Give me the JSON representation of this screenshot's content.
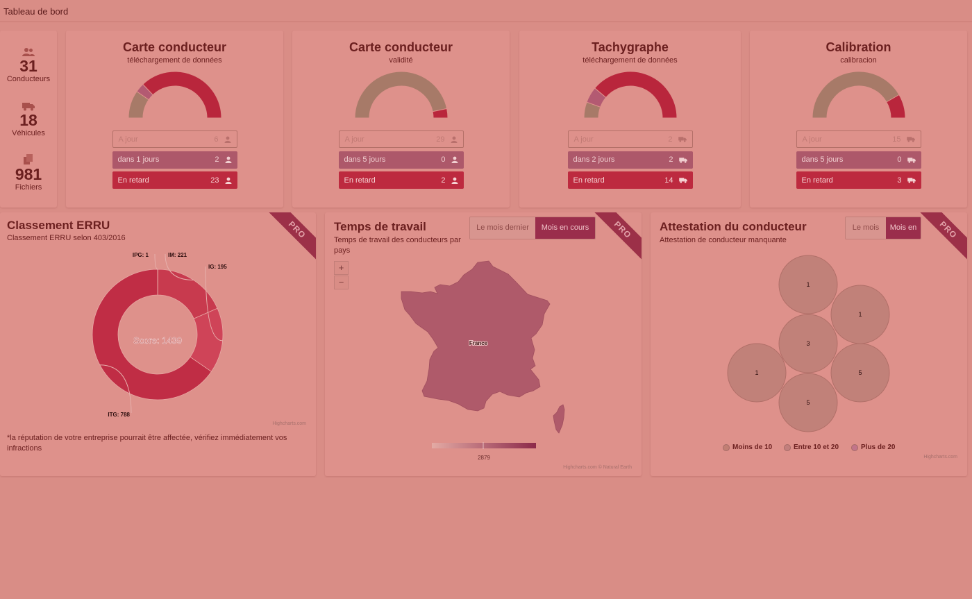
{
  "topbar": {
    "title": "Tableau de bord"
  },
  "stats": [
    {
      "icon": "users-icon",
      "value": "31",
      "label": "Conducteurs"
    },
    {
      "icon": "truck-icon",
      "value": "18",
      "label": "Véhicules"
    },
    {
      "icon": "files-icon",
      "value": "981",
      "label": "Fichiers"
    }
  ],
  "gauges": [
    {
      "title": "Carte conducteur",
      "subtitle": "téléchargement de données",
      "entity_icon": "person-icon",
      "rows": [
        {
          "label": "A jour",
          "count": "6"
        },
        {
          "label": "dans 1 jours",
          "count": "2"
        },
        {
          "label": "En retard",
          "count": "23"
        }
      ],
      "values": [
        6,
        2,
        23
      ]
    },
    {
      "title": "Carte conducteur",
      "subtitle": "validité",
      "entity_icon": "person-icon",
      "rows": [
        {
          "label": "A jour",
          "count": "29"
        },
        {
          "label": "dans 5 jours",
          "count": "0"
        },
        {
          "label": "En retard",
          "count": "2"
        }
      ],
      "values": [
        29,
        0,
        2
      ]
    },
    {
      "title": "Tachygraphe",
      "subtitle": "téléchargement de données",
      "entity_icon": "truck-icon",
      "rows": [
        {
          "label": "A jour",
          "count": "2"
        },
        {
          "label": "dans 2 jours",
          "count": "2"
        },
        {
          "label": "En retard",
          "count": "14"
        }
      ],
      "values": [
        2,
        2,
        14
      ]
    },
    {
      "title": "Calibration",
      "subtitle": "calibracion",
      "entity_icon": "truck-icon",
      "rows": [
        {
          "label": "A jour",
          "count": "15"
        },
        {
          "label": "dans 5 jours",
          "count": "0"
        },
        {
          "label": "En retard",
          "count": "3"
        }
      ],
      "values": [
        15,
        0,
        3
      ]
    }
  ],
  "colors": {
    "ok": "#a77a68",
    "soon": "#b35a72",
    "late": "#b9263c",
    "page": "#d98d86",
    "card": "#de918b"
  },
  "errru": {
    "title": "Classement ERRU",
    "subtitle": "Classement ERRU selon 403/2016",
    "badge": "PRO",
    "score_label": "Score: 1439",
    "note": "*la réputation de votre entreprise pourrait être affectée, vérifiez immédiatement vos infractions",
    "credit": "Highcharts.com"
  },
  "worktime": {
    "title": "Temps de travail",
    "subtitle": "Temps de travail des conducteurs par pays",
    "badge": "PRO",
    "toggle": [
      "Le mois dernier",
      "Mois en cours"
    ],
    "zoom_in": "+",
    "zoom_out": "−",
    "country_label": "France",
    "scale_label": "2879",
    "credit": "Highcharts.com © Natural Earth"
  },
  "attest": {
    "title": "Attestation du conducteur",
    "subtitle": "Attestation de conducteur manquante",
    "badge": "PRO",
    "toggle": [
      "Le mois",
      "Mois en"
    ],
    "legend": [
      "Moins de 10",
      "Entre 10 et 20",
      "Plus de 20"
    ],
    "credit": "Highcharts.com"
  },
  "chart_data": [
    {
      "type": "pie",
      "title": "Classement ERRU",
      "subtitle": "Classement ERRU selon 403/2016",
      "categories": [
        "IPG",
        "IM",
        "IG",
        "ITG"
      ],
      "values": [
        1,
        221,
        195,
        788
      ],
      "data_labels": [
        "IPG: 1",
        "IM: 221",
        "IG: 195",
        "ITG: 788"
      ],
      "center_label": "Score: 1439"
    },
    {
      "type": "scatter",
      "title": "Attestation du conducteur",
      "subtitle": "Attestation de conducteur manquante",
      "categories": [
        "1",
        "1",
        "3",
        "1",
        "5",
        "5"
      ],
      "values": [
        1,
        1,
        3,
        1,
        5,
        5
      ],
      "legend": [
        "Moins de 10",
        "Entre 10 et 20",
        "Plus de 20"
      ],
      "legend_position": "bottom"
    }
  ]
}
